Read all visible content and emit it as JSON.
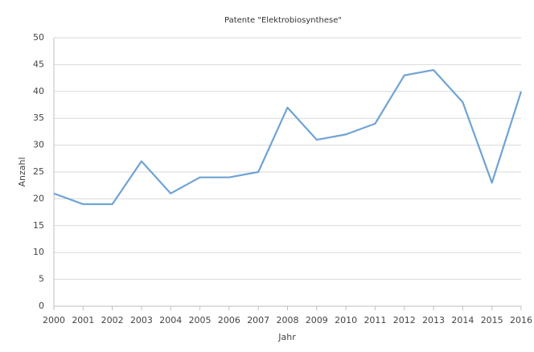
{
  "chart_data": {
    "type": "line",
    "title": "Patente \"Elektrobiosynthese\"",
    "x_label": "Jahr",
    "y_label": "Anzahl",
    "x": [
      2000,
      2001,
      2002,
      2003,
      2004,
      2005,
      2006,
      2007,
      2008,
      2009,
      2010,
      2011,
      2012,
      2013,
      2014,
      2015,
      2016
    ],
    "series": [
      {
        "name": "Anzahl",
        "color": "#6fa3d5",
        "values": [
          21,
          19,
          19,
          27,
          21,
          24,
          24,
          25,
          37,
          31,
          32,
          34,
          43,
          44,
          38,
          23,
          40
        ]
      }
    ],
    "xlim": [
      2000,
      2016
    ],
    "xticks": [
      2000,
      2001,
      2002,
      2003,
      2004,
      2005,
      2006,
      2007,
      2008,
      2009,
      2010,
      2011,
      2012,
      2013,
      2014,
      2015,
      2016
    ],
    "ylim": [
      0,
      50
    ],
    "yticks": [
      0,
      5,
      10,
      15,
      20,
      25,
      30,
      35,
      40,
      45,
      50
    ],
    "grid": true,
    "legend": false
  }
}
